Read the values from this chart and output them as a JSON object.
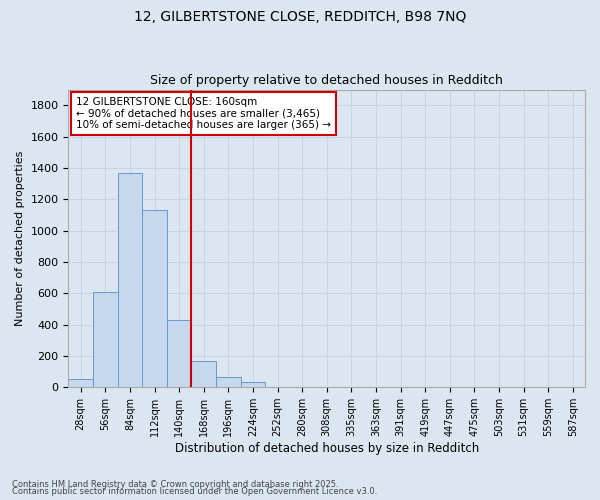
{
  "title1": "12, GILBERTSTONE CLOSE, REDDITCH, B98 7NQ",
  "title2": "Size of property relative to detached houses in Redditch",
  "xlabel": "Distribution of detached houses by size in Redditch",
  "ylabel": "Number of detached properties",
  "categories": [
    "28sqm",
    "56sqm",
    "84sqm",
    "112sqm",
    "140sqm",
    "168sqm",
    "196sqm",
    "224sqm",
    "252sqm",
    "280sqm",
    "308sqm",
    "335sqm",
    "363sqm",
    "391sqm",
    "419sqm",
    "447sqm",
    "475sqm",
    "503sqm",
    "531sqm",
    "559sqm",
    "587sqm"
  ],
  "values": [
    55,
    605,
    1365,
    1130,
    430,
    170,
    65,
    35,
    0,
    0,
    0,
    0,
    0,
    0,
    0,
    0,
    0,
    0,
    0,
    0,
    0
  ],
  "bar_color": "#c5d8ee",
  "bar_edge_color": "#6699cc",
  "vline_index": 5,
  "vline_color": "#cc0000",
  "annotation_text": "12 GILBERTSTONE CLOSE: 160sqm\n← 90% of detached houses are smaller (3,465)\n10% of semi-detached houses are larger (365) →",
  "annotation_box_color": "#cc0000",
  "annotation_bg": "#ffffff",
  "ylim": [
    0,
    1900
  ],
  "yticks": [
    0,
    200,
    400,
    600,
    800,
    1000,
    1200,
    1400,
    1600,
    1800
  ],
  "grid_color": "#c8d4e4",
  "bg_color": "#dce6f0",
  "footer1": "Contains HM Land Registry data © Crown copyright and database right 2025.",
  "footer2": "Contains public sector information licensed under the Open Government Licence v3.0."
}
